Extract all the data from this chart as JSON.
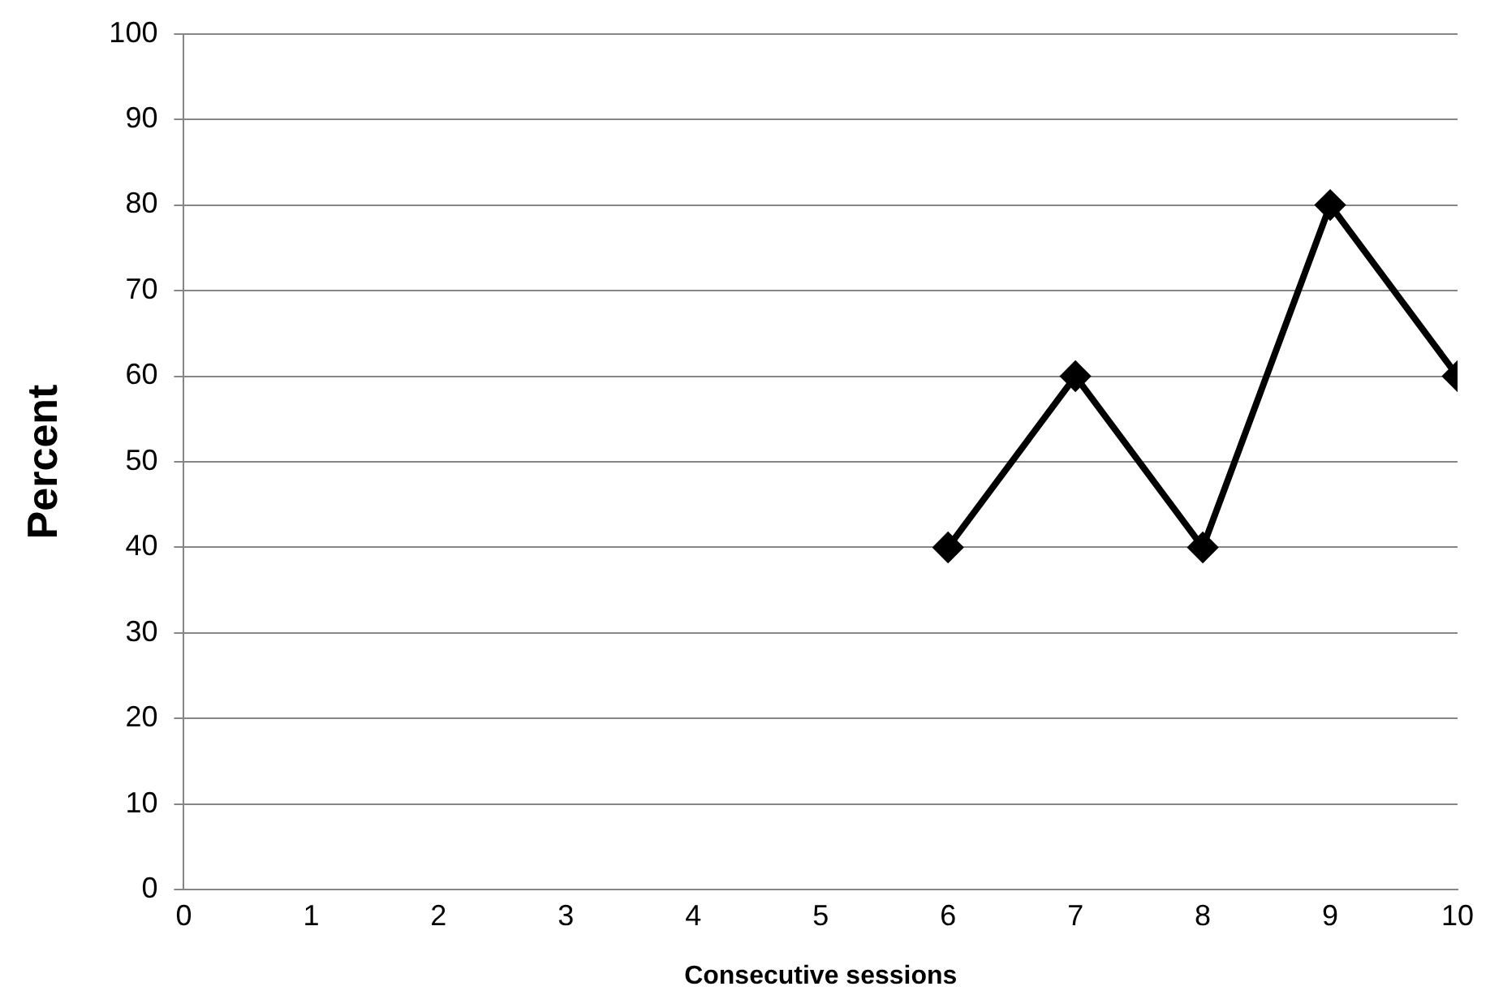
{
  "chart_data": {
    "type": "line",
    "xlabel": "Consecutive sessions",
    "ylabel": "Percent",
    "x": [
      6,
      7,
      8,
      9,
      10
    ],
    "series": [
      {
        "color": "#000000",
        "values": [
          40,
          60,
          40,
          80,
          60
        ]
      }
    ],
    "xlim": [
      0,
      10
    ],
    "xticks": [
      0,
      1,
      2,
      3,
      4,
      5,
      6,
      7,
      8,
      9,
      10
    ],
    "ylim": [
      0,
      100
    ],
    "yticks": [
      0,
      10,
      20,
      30,
      40,
      50,
      60,
      70,
      80,
      90,
      100
    ],
    "grid": "y",
    "legend": false,
    "marker": "diamond",
    "line_style": "solid"
  }
}
